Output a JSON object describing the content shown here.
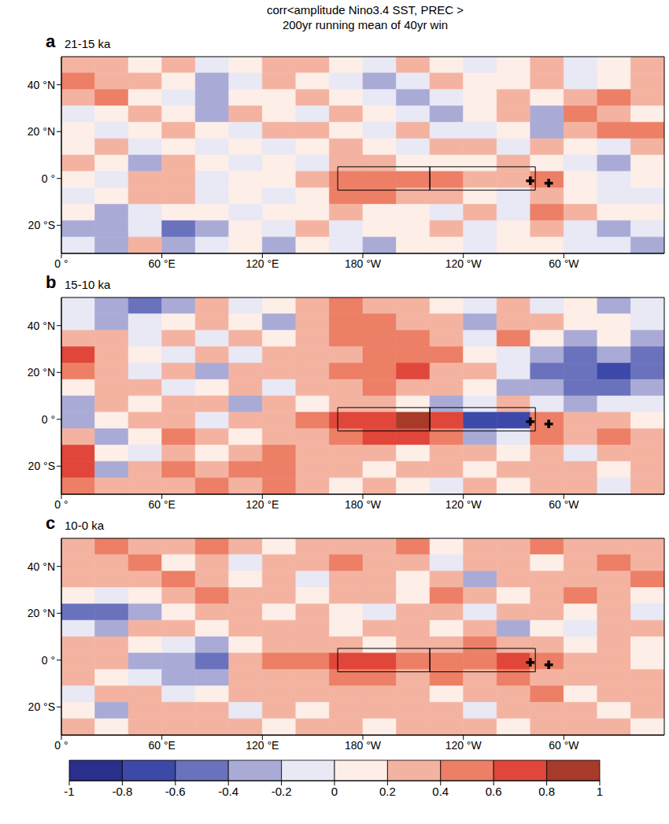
{
  "title": "corr<amplitude Nino3.4 SST, PREC >",
  "subtitle": "200yr running mean of 40yr win",
  "colorbar": {
    "range": [
      -1,
      1
    ],
    "ticks": [
      -1,
      -0.8,
      -0.6,
      -0.4,
      -0.2,
      0,
      0.2,
      0.4,
      0.6,
      0.8,
      1
    ],
    "colors": [
      "#2b2f8c",
      "#3d49a8",
      "#6a72bd",
      "#a9abd6",
      "#e9e8f5",
      "#fdeee8",
      "#f4b3a1",
      "#ec7f66",
      "#e0473a",
      "#a83a2a"
    ]
  },
  "chart_data": [
    {
      "type": "heatmap",
      "label": "a",
      "title": "21-15 ka",
      "xlim": [
        0,
        360
      ],
      "ylim": [
        -32,
        52
      ],
      "xticks": [
        {
          "value": 0,
          "label": "0 °"
        },
        {
          "value": 60,
          "label": "60 °E"
        },
        {
          "value": 120,
          "label": "120 °E"
        },
        {
          "value": 180,
          "label": "180 °W"
        },
        {
          "value": 240,
          "label": "120 °W"
        },
        {
          "value": 300,
          "label": "60 °W"
        }
      ],
      "yticks": [
        {
          "value": -20,
          "label": "20 °S"
        },
        {
          "value": 0,
          "label": "0 °"
        },
        {
          "value": 20,
          "label": "20 °N"
        },
        {
          "value": 40,
          "label": "40 °N"
        }
      ],
      "x": [
        10,
        30,
        50,
        70,
        90,
        110,
        130,
        150,
        170,
        190,
        210,
        230,
        250,
        270,
        290,
        310,
        330,
        350
      ],
      "y": [
        48.5,
        41.5,
        34.5,
        27.5,
        20.5,
        13.5,
        6.5,
        -0.5,
        -7.5,
        -14.5,
        -21.5,
        -28.5
      ],
      "cells": [
        [
          0.3,
          0.2,
          0.1,
          0.3,
          -0.1,
          0.1,
          0.3,
          0.2,
          0.0,
          -0.2,
          0.2,
          0.1,
          -0.1,
          0.1,
          0.3,
          -0.2,
          0.0,
          0.2
        ],
        [
          0.4,
          0.3,
          0.2,
          0.1,
          -0.3,
          -0.2,
          0.2,
          0.1,
          -0.1,
          -0.3,
          -0.1,
          0.2,
          0.1,
          0.0,
          0.2,
          -0.1,
          0.1,
          0.3
        ],
        [
          0.2,
          0.4,
          0.1,
          -0.2,
          -0.3,
          0.1,
          0.0,
          0.2,
          0.1,
          -0.2,
          -0.4,
          -0.1,
          0.0,
          0.2,
          0.1,
          0.3,
          0.4,
          0.2
        ],
        [
          -0.2,
          0.1,
          0.3,
          0.0,
          -0.4,
          0.2,
          0.1,
          -0.2,
          0.3,
          0.1,
          -0.2,
          -0.3,
          0.1,
          0.2,
          -0.3,
          0.4,
          0.3,
          0.1
        ],
        [
          0.1,
          -0.2,
          0.0,
          0.2,
          0.1,
          -0.2,
          0.2,
          0.3,
          0.1,
          -0.1,
          0.2,
          -0.1,
          -0.2,
          0.1,
          -0.4,
          0.2,
          0.5,
          0.4
        ],
        [
          0.0,
          0.2,
          -0.1,
          0.1,
          -0.2,
          0.1,
          -0.2,
          0.1,
          0.2,
          0.0,
          -0.1,
          0.2,
          0.3,
          -0.2,
          0.2,
          0.1,
          -0.1,
          0.2
        ],
        [
          0.3,
          0.1,
          -0.3,
          0.2,
          0.0,
          -0.1,
          0.1,
          -0.1,
          0.3,
          0.2,
          0.1,
          0.0,
          0.1,
          0.3,
          0.0,
          -0.1,
          -0.3,
          0.0
        ],
        [
          0.1,
          -0.1,
          0.3,
          0.2,
          -0.2,
          0.0,
          0.1,
          0.2,
          0.5,
          0.5,
          0.4,
          0.4,
          0.3,
          0.2,
          0.4,
          0.1,
          -0.2,
          0.1
        ],
        [
          -0.2,
          0.0,
          0.2,
          0.3,
          -0.1,
          0.1,
          -0.1,
          0.1,
          0.4,
          0.4,
          0.3,
          0.2,
          0.0,
          -0.2,
          0.3,
          0.0,
          -0.2,
          -0.1
        ],
        [
          0.1,
          -0.3,
          -0.2,
          0.0,
          0.1,
          -0.2,
          0.1,
          0.0,
          0.2,
          0.1,
          0.0,
          -0.1,
          0.2,
          -0.1,
          0.4,
          0.2,
          0.1,
          0.0
        ],
        [
          -0.3,
          -0.4,
          -0.1,
          -0.5,
          -0.3,
          0.1,
          -0.2,
          0.2,
          -0.2,
          0.0,
          0.1,
          0.2,
          -0.1,
          0.0,
          0.2,
          -0.2,
          -0.3,
          -0.1
        ],
        [
          -0.2,
          -0.3,
          0.2,
          -0.4,
          -0.2,
          0.0,
          -0.3,
          0.1,
          -0.1,
          -0.3,
          0.0,
          0.1,
          -0.2,
          0.1,
          0.0,
          -0.1,
          -0.2,
          -0.3
        ]
      ],
      "regions": [
        {
          "lon": [
            165,
            220
          ],
          "lat": [
            -5,
            5
          ]
        },
        {
          "lon": [
            220,
            283
          ],
          "lat": [
            -5,
            5
          ]
        }
      ],
      "markers": [
        {
          "lon": 280,
          "lat": -1
        },
        {
          "lon": 291,
          "lat": -2
        }
      ]
    },
    {
      "type": "heatmap",
      "label": "b",
      "title": "15-10 ka",
      "xlim": [
        0,
        360
      ],
      "ylim": [
        -32,
        52
      ],
      "xticks": [
        {
          "value": 0,
          "label": "0 °"
        },
        {
          "value": 60,
          "label": "60 °E"
        },
        {
          "value": 120,
          "label": "120 °E"
        },
        {
          "value": 180,
          "label": "180 °W"
        },
        {
          "value": 240,
          "label": "120 °W"
        },
        {
          "value": 300,
          "label": "60 °W"
        }
      ],
      "yticks": [
        {
          "value": -20,
          "label": "20 °S"
        },
        {
          "value": 0,
          "label": "0 °"
        },
        {
          "value": 20,
          "label": "20 °N"
        },
        {
          "value": 40,
          "label": "40 °N"
        }
      ],
      "x": [
        10,
        30,
        50,
        70,
        90,
        110,
        130,
        150,
        170,
        190,
        210,
        230,
        250,
        270,
        290,
        310,
        330,
        350
      ],
      "y": [
        48.5,
        41.5,
        34.5,
        27.5,
        20.5,
        13.5,
        6.5,
        -0.5,
        -7.5,
        -14.5,
        -21.5,
        -28.5
      ],
      "cells": [
        [
          -0.2,
          -0.4,
          -0.5,
          -0.3,
          0.2,
          -0.2,
          0.1,
          0.3,
          0.4,
          0.2,
          0.3,
          0.1,
          -0.2,
          0.3,
          -0.1,
          0.1,
          -0.3,
          -0.1
        ],
        [
          -0.1,
          -0.3,
          -0.2,
          0.1,
          0.3,
          0.1,
          -0.3,
          0.2,
          0.4,
          0.4,
          0.3,
          0.2,
          -0.3,
          0.2,
          0.2,
          0.0,
          0.1,
          -0.2
        ],
        [
          0.3,
          0.2,
          -0.1,
          0.2,
          -0.2,
          0.3,
          0.1,
          0.3,
          0.4,
          0.5,
          0.4,
          0.3,
          -0.2,
          0.4,
          0.1,
          -0.3,
          0.0,
          -0.3
        ],
        [
          0.7,
          0.3,
          0.1,
          -0.2,
          0.2,
          -0.1,
          0.2,
          0.3,
          0.3,
          0.5,
          0.5,
          0.4,
          0.1,
          -0.1,
          -0.3,
          -0.5,
          -0.4,
          -0.6
        ],
        [
          0.4,
          0.2,
          -0.2,
          0.3,
          -0.3,
          0.2,
          0.3,
          0.2,
          0.4,
          0.5,
          0.6,
          0.3,
          0.2,
          -0.2,
          -0.5,
          -0.6,
          -0.7,
          -0.5
        ],
        [
          0.1,
          0.3,
          0.2,
          -0.2,
          0.1,
          0.3,
          -0.2,
          0.3,
          0.3,
          0.4,
          0.3,
          0.2,
          0.1,
          -0.3,
          -0.4,
          -0.5,
          -0.6,
          -0.4
        ],
        [
          -0.3,
          0.2,
          0.1,
          0.3,
          0.2,
          -0.3,
          0.2,
          0.1,
          0.3,
          0.2,
          0.0,
          -0.3,
          -0.2,
          0.2,
          -0.2,
          -0.3,
          -0.2,
          -0.1
        ],
        [
          -0.4,
          0.1,
          0.3,
          0.2,
          -0.1,
          0.3,
          0.2,
          0.4,
          0.6,
          0.7,
          0.8,
          0.7,
          -0.8,
          -0.7,
          0.5,
          0.2,
          0.3,
          0.1
        ],
        [
          0.2,
          -0.3,
          0.1,
          0.4,
          0.2,
          0.1,
          0.3,
          0.3,
          0.5,
          0.6,
          0.6,
          0.4,
          -0.3,
          -0.2,
          0.4,
          0.3,
          0.4,
          0.2
        ],
        [
          0.6,
          0.1,
          -0.2,
          0.3,
          0.1,
          0.2,
          0.4,
          0.2,
          0.3,
          0.2,
          0.1,
          0.3,
          0.2,
          0.1,
          0.3,
          -0.1,
          0.2,
          0.3
        ],
        [
          0.7,
          -0.3,
          0.2,
          0.4,
          0.3,
          0.4,
          0.5,
          0.3,
          0.2,
          0.1,
          0.3,
          0.2,
          0.0,
          0.3,
          0.2,
          0.3,
          0.1,
          0.2
        ],
        [
          0.4,
          0.2,
          0.3,
          0.2,
          0.4,
          0.3,
          0.4,
          0.2,
          0.1,
          0.3,
          0.1,
          -0.1,
          0.2,
          0.1,
          0.3,
          0.2,
          -0.1,
          0.3
        ]
      ],
      "regions": [
        {
          "lon": [
            165,
            220
          ],
          "lat": [
            -5,
            5
          ]
        },
        {
          "lon": [
            220,
            283
          ],
          "lat": [
            -5,
            5
          ]
        }
      ],
      "markers": [
        {
          "lon": 280,
          "lat": -1
        },
        {
          "lon": 291,
          "lat": -2
        }
      ]
    },
    {
      "type": "heatmap",
      "label": "c",
      "title": "10-0 ka",
      "xlim": [
        0,
        360
      ],
      "ylim": [
        -32,
        52
      ],
      "xticks": [
        {
          "value": 0,
          "label": "0 °"
        },
        {
          "value": 60,
          "label": "60 °E"
        },
        {
          "value": 120,
          "label": "120 °E"
        },
        {
          "value": 180,
          "label": "180 °W"
        },
        {
          "value": 240,
          "label": "120 °W"
        },
        {
          "value": 300,
          "label": "60 °W"
        }
      ],
      "yticks": [
        {
          "value": -20,
          "label": "20 °S"
        },
        {
          "value": 0,
          "label": "0 °"
        },
        {
          "value": 20,
          "label": "20 °N"
        },
        {
          "value": 40,
          "label": "40 °N"
        }
      ],
      "x": [
        10,
        30,
        50,
        70,
        90,
        110,
        130,
        150,
        170,
        190,
        210,
        230,
        250,
        270,
        290,
        310,
        330,
        350
      ],
      "y": [
        48.5,
        41.5,
        34.5,
        27.5,
        20.5,
        13.5,
        6.5,
        -0.5,
        -7.5,
        -14.5,
        -21.5,
        -28.5
      ],
      "cells": [
        [
          0.3,
          0.4,
          0.2,
          0.3,
          0.4,
          0.2,
          0.1,
          0.3,
          0.2,
          0.3,
          0.4,
          0.1,
          0.2,
          0.3,
          0.4,
          0.3,
          0.2,
          0.3
        ],
        [
          0.2,
          0.3,
          0.4,
          0.1,
          0.3,
          -0.1,
          0.2,
          0.3,
          0.4,
          0.2,
          0.3,
          -0.2,
          0.3,
          0.2,
          0.1,
          0.3,
          0.4,
          0.2
        ],
        [
          0.3,
          0.2,
          0.3,
          0.4,
          0.2,
          0.1,
          0.3,
          -0.1,
          0.2,
          0.3,
          0.1,
          0.3,
          -0.3,
          0.2,
          0.3,
          0.2,
          0.3,
          0.4
        ],
        [
          0.1,
          -0.2,
          0.0,
          0.3,
          0.4,
          0.3,
          0.2,
          0.1,
          0.3,
          0.2,
          0.0,
          0.4,
          0.2,
          0.1,
          0.3,
          0.4,
          0.2,
          0.1
        ],
        [
          -0.5,
          -0.6,
          -0.3,
          0.1,
          0.2,
          0.3,
          0.1,
          0.2,
          0.1,
          -0.1,
          0.2,
          0.3,
          -0.2,
          0.3,
          0.2,
          0.1,
          0.3,
          -0.2
        ],
        [
          -0.2,
          -0.3,
          0.2,
          0.3,
          0.1,
          0.2,
          0.3,
          0.2,
          0.0,
          0.3,
          0.2,
          0.1,
          0.3,
          -0.3,
          0.1,
          -0.1,
          0.2,
          0.3
        ],
        [
          0.3,
          0.2,
          0.1,
          -0.2,
          -0.4,
          0.1,
          0.2,
          0.3,
          0.2,
          0.1,
          0.3,
          0.2,
          0.4,
          0.3,
          0.2,
          0.1,
          0.2,
          0.0
        ],
        [
          0.2,
          0.3,
          -0.3,
          -0.4,
          -0.5,
          0.3,
          0.4,
          0.5,
          0.6,
          0.6,
          0.5,
          0.4,
          0.5,
          0.6,
          0.4,
          0.3,
          0.2,
          0.1
        ],
        [
          0.3,
          0.1,
          -0.2,
          -0.3,
          -0.4,
          0.2,
          0.3,
          0.2,
          0.4,
          0.4,
          0.3,
          0.4,
          0.3,
          0.5,
          0.3,
          0.2,
          0.3,
          0.2
        ],
        [
          -0.2,
          0.2,
          0.3,
          -0.2,
          0.1,
          0.3,
          0.2,
          0.3,
          0.2,
          0.3,
          0.2,
          0.1,
          0.3,
          0.2,
          0.4,
          0.1,
          0.2,
          0.3
        ],
        [
          0.1,
          -0.3,
          0.2,
          0.3,
          0.2,
          -0.1,
          0.2,
          0.1,
          0.3,
          0.2,
          0.3,
          0.2,
          -0.2,
          0.2,
          0.3,
          0.2,
          0.1,
          0.2
        ],
        [
          0.2,
          0.1,
          0.3,
          0.2,
          0.3,
          0.2,
          0.1,
          0.3,
          0.2,
          0.1,
          0.2,
          0.3,
          0.2,
          0.1,
          0.2,
          0.3,
          0.2,
          0.1
        ]
      ],
      "regions": [
        {
          "lon": [
            165,
            220
          ],
          "lat": [
            -5,
            5
          ]
        },
        {
          "lon": [
            220,
            283
          ],
          "lat": [
            -5,
            5
          ]
        }
      ],
      "markers": [
        {
          "lon": 280,
          "lat": -1
        },
        {
          "lon": 291,
          "lat": -2
        }
      ]
    }
  ]
}
